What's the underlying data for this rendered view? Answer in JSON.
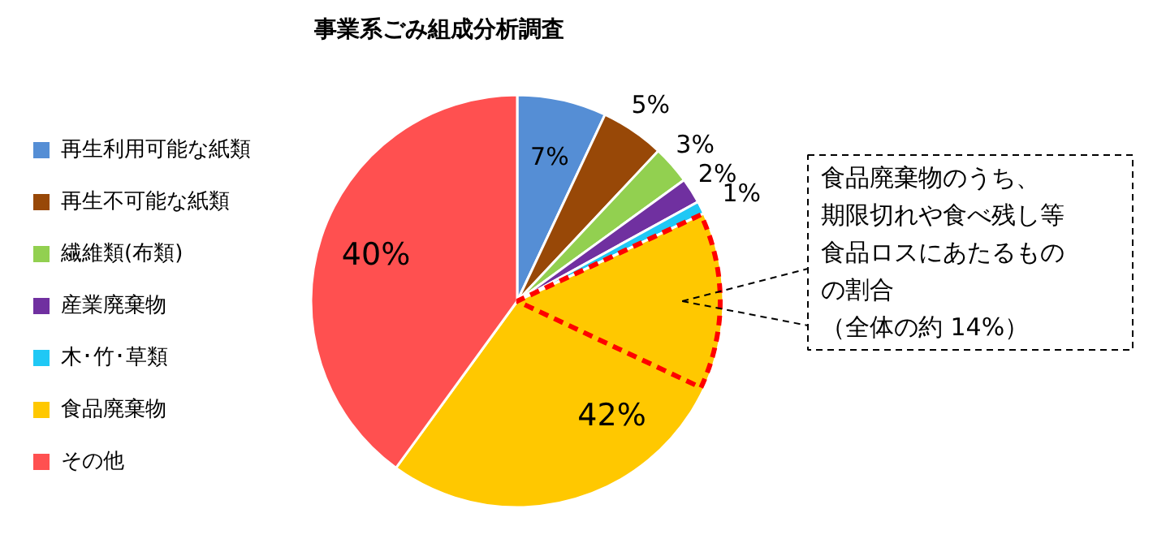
{
  "chart_data": {
    "type": "pie",
    "title": "事業系ごみ組成分析調査",
    "categories": [
      "再生利用可能な紙類",
      "再生不可能な紙類",
      "繊維類(布類)",
      "産業廃棄物",
      "木･竹･草類",
      "食品廃棄物",
      "その他"
    ],
    "values": [
      7,
      5,
      3,
      2,
      1,
      42,
      40
    ],
    "colors": [
      "#558ed5",
      "#984807",
      "#92d050",
      "#7030a0",
      "#1fc8f5",
      "#ffc800",
      "#ff5050"
    ],
    "value_labels": [
      "7%",
      "5%",
      "3%",
      "2%",
      "1%",
      "42%",
      "40%"
    ],
    "legend": "left",
    "annotations": [
      "食品廃棄物のうち、",
      "期限切れや食べ残し等",
      "食品ロスにあたるもの",
      "の割合",
      "（全体の約 14%）"
    ]
  }
}
